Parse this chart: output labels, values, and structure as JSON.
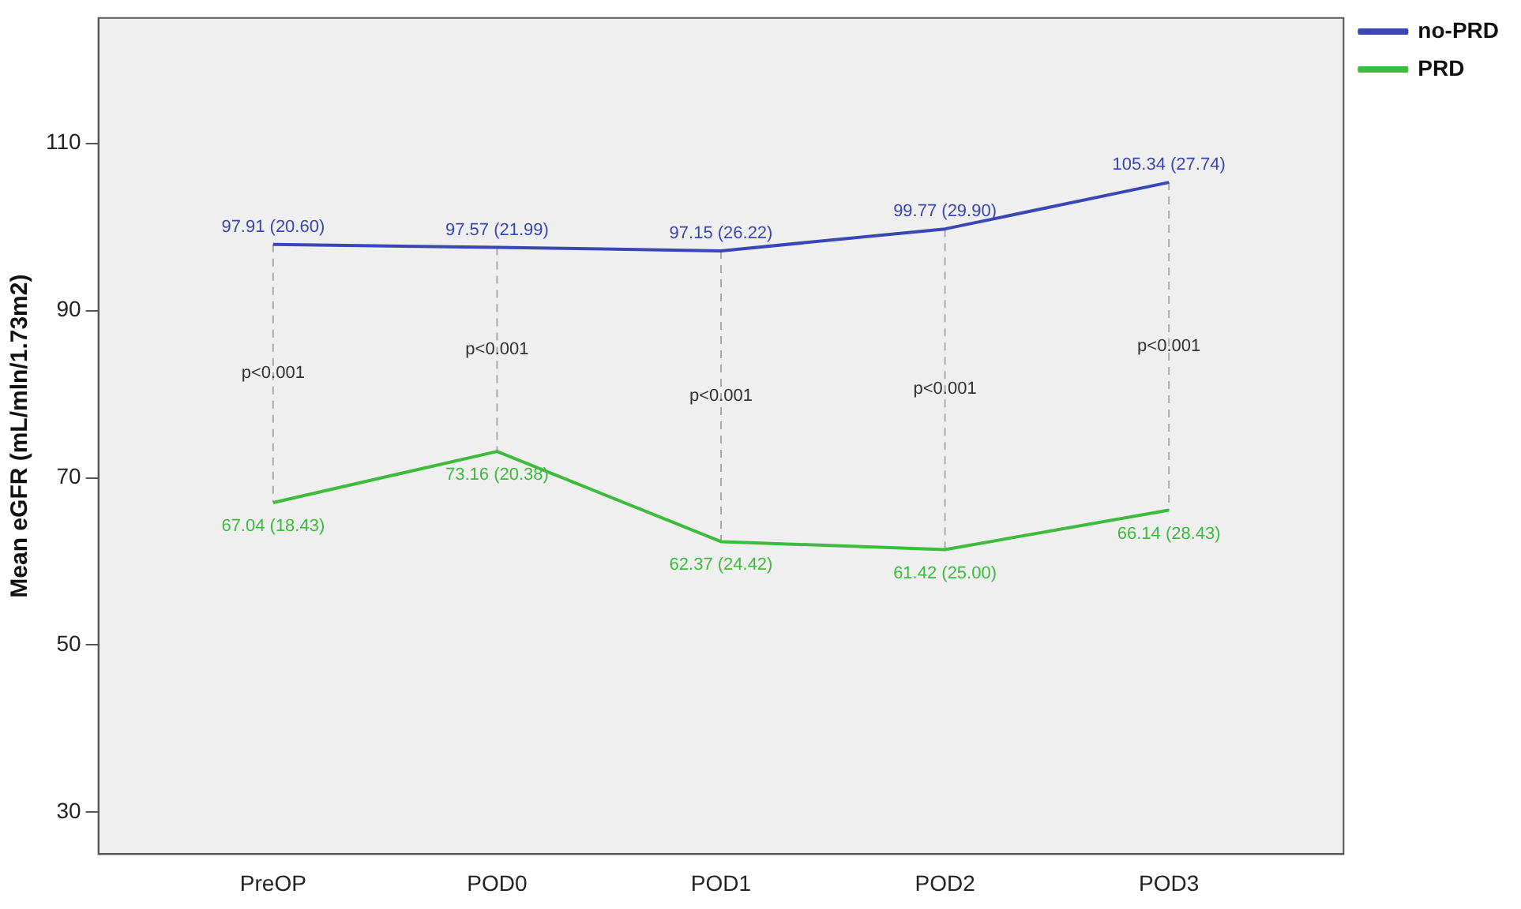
{
  "chart_data": {
    "type": "line",
    "ylabel": "Mean eGFR (mL/mln/1.73m2)",
    "categories": [
      "PreOP",
      "POD0",
      "POD1",
      "POD2",
      "POD3"
    ],
    "series": [
      {
        "name": "no-PRD",
        "color": "#3a46b4",
        "values": [
          97.91,
          97.57,
          97.15,
          99.77,
          105.34
        ],
        "value_labels": [
          "97.91 (20.60)",
          "97.57 (21.99)",
          "97.15 (26.22)",
          "99.77 (29.90)",
          "105.34 (27.74)"
        ]
      },
      {
        "name": "PRD",
        "color": "#3dbb3d",
        "values": [
          67.04,
          73.16,
          62.37,
          61.42,
          66.14
        ],
        "value_labels": [
          "67.04 (18.43)",
          "73.16 (20.38)",
          "62.37 (24.42)",
          "61.42 (25.00)",
          "66.14 (28.43)"
        ]
      }
    ],
    "annotations": [
      "p<0.001",
      "p<0.001",
      "p<0.001",
      "p<0.001",
      "p<0.001"
    ],
    "ylim": [
      25,
      125
    ],
    "yticks": [
      30,
      50,
      70,
      90,
      110
    ],
    "grid": false,
    "legend": "top right",
    "marker": "none",
    "line_style": "solid"
  }
}
